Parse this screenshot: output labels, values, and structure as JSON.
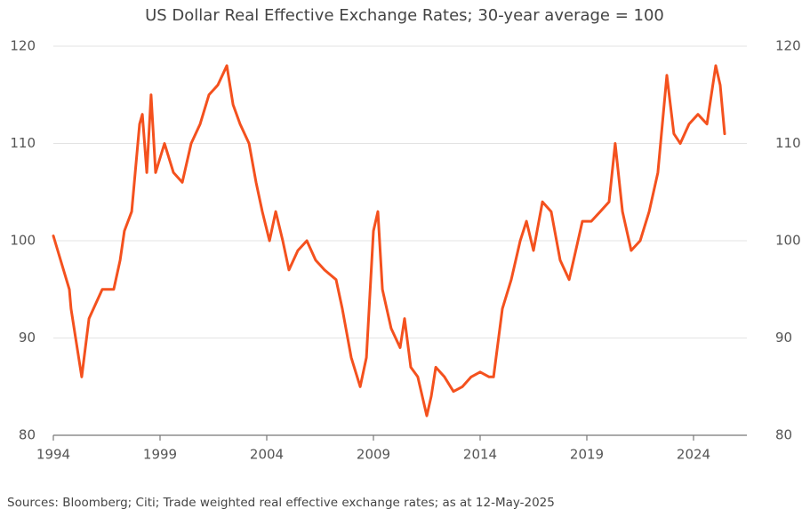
{
  "chart_data": {
    "type": "line",
    "title": "US Dollar Real Effective Exchange Rates; 30-year average = 100",
    "source": "Sources: Bloomberg; Citi; Trade weighted real effective exchange rates; as at 12-May-2025",
    "x": [
      1994.0,
      1994.75,
      1994.83,
      1995.33,
      1995.67,
      1996.29,
      1996.83,
      1997.13,
      1997.33,
      1997.67,
      1998.04,
      1998.17,
      1998.38,
      1998.58,
      1998.79,
      1999.21,
      1999.63,
      2000.04,
      2000.46,
      2000.88,
      2001.29,
      2001.71,
      2002.13,
      2002.42,
      2002.75,
      2003.17,
      2003.5,
      2003.79,
      2004.13,
      2004.42,
      2004.75,
      2005.04,
      2005.46,
      2005.88,
      2006.29,
      2006.71,
      2007.25,
      2007.54,
      2007.96,
      2008.38,
      2008.67,
      2009.0,
      2009.21,
      2009.42,
      2009.83,
      2010.25,
      2010.46,
      2010.75,
      2011.08,
      2011.5,
      2011.71,
      2011.92,
      2012.33,
      2012.75,
      2013.17,
      2013.58,
      2014.0,
      2014.42,
      2014.63,
      2015.04,
      2015.46,
      2015.88,
      2016.17,
      2016.5,
      2016.92,
      2017.33,
      2017.75,
      2018.17,
      2018.38,
      2018.79,
      2019.21,
      2019.63,
      2020.04,
      2020.33,
      2020.67,
      2021.08,
      2021.5,
      2021.92,
      2022.33,
      2022.75,
      2023.08,
      2023.38,
      2023.79,
      2024.21,
      2024.63,
      2025.04,
      2025.25,
      2025.46
    ],
    "series": [
      {
        "name": "USD REER",
        "color": "#f4511e",
        "values": [
          100.5,
          95,
          93,
          86,
          92,
          95,
          95,
          98,
          101,
          103,
          112,
          113,
          107,
          115,
          107,
          110,
          107,
          106,
          110,
          112,
          115,
          116,
          118,
          114,
          112,
          110,
          106,
          103,
          100,
          103,
          100,
          97,
          99,
          100,
          98,
          97,
          96,
          93,
          88,
          85,
          88,
          101,
          103,
          95,
          91,
          89,
          92,
          87,
          86,
          82,
          84,
          87,
          86,
          84.5,
          85,
          86,
          86.5,
          86,
          86,
          93,
          96,
          100,
          102,
          99,
          104,
          103,
          98,
          96,
          98,
          102,
          102,
          103,
          104,
          110,
          103,
          99,
          100,
          103,
          107,
          117,
          111,
          110,
          112,
          113,
          112,
          118,
          116,
          111
        ]
      }
    ],
    "xlim": [
      1994,
      2026.5
    ],
    "xticks": [
      1994,
      1999,
      2004,
      2009,
      2014,
      2019,
      2024
    ],
    "ylim": [
      80,
      120
    ],
    "yticks": [
      80,
      90,
      100,
      110,
      120
    ],
    "y2lim": [
      80,
      120
    ],
    "y2ticks": [
      80,
      90,
      100,
      110,
      120
    ],
    "grid": true
  }
}
